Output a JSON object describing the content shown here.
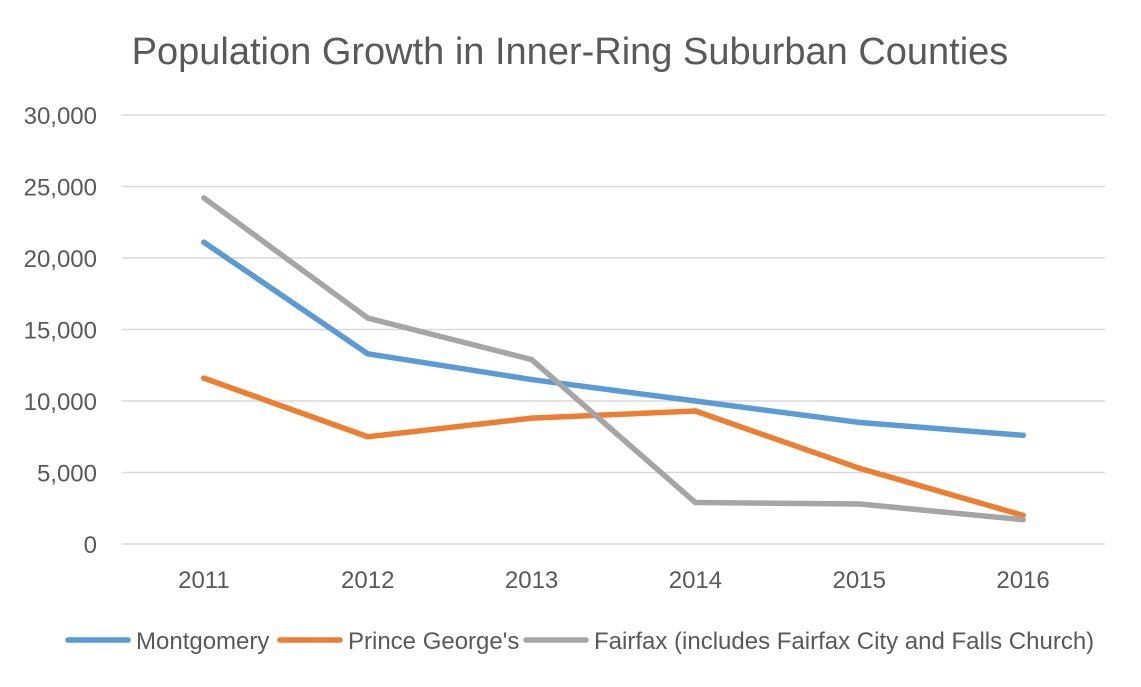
{
  "chart_data": {
    "type": "line",
    "title": "Population Growth in Inner-Ring Suburban Counties",
    "xlabel": "",
    "ylabel": "",
    "categories": [
      "2011",
      "2012",
      "2013",
      "2014",
      "2015",
      "2016"
    ],
    "ylim": [
      0,
      30000
    ],
    "yticks": [
      0,
      5000,
      10000,
      15000,
      20000,
      25000,
      30000
    ],
    "ytick_labels": [
      "0",
      "5,000",
      "10,000",
      "15,000",
      "20,000",
      "25,000",
      "30,000"
    ],
    "grid": true,
    "legend_position": "bottom",
    "series": [
      {
        "name": "Montgomery",
        "color": "#5B9BD5",
        "values": [
          21100,
          13300,
          11500,
          10000,
          8500,
          7600
        ]
      },
      {
        "name": "Prince George's",
        "color": "#ED7D31",
        "values": [
          11600,
          7500,
          8800,
          9300,
          5300,
          2000
        ]
      },
      {
        "name": "Fairfax (includes Fairfax City and Falls Church)",
        "color": "#A5A5A5",
        "values": [
          24200,
          15800,
          12900,
          2900,
          2800,
          1700
        ]
      }
    ]
  }
}
